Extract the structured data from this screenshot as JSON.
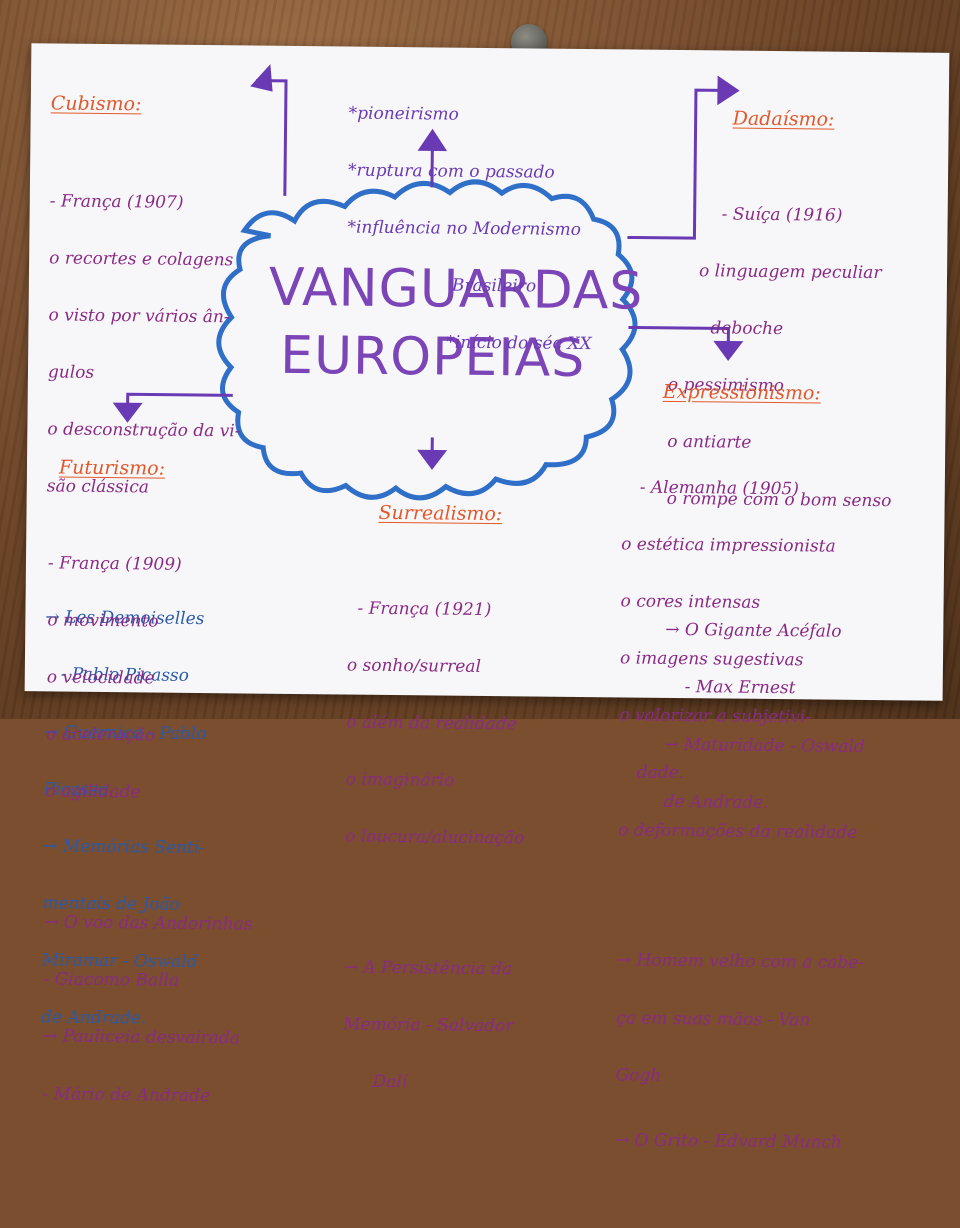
{
  "center": {
    "line1": "VANGUARDAS",
    "line2": "EUROPEIAS"
  },
  "top": {
    "items": [
      "*pioneirismo",
      "*ruptura com o passado",
      "*influência no Modernismo",
      "Brasileiro",
      "*início do séc XX"
    ]
  },
  "cubismo": {
    "title": "Cubismo:",
    "items": [
      "- França (1907)",
      "o recortes e colagens",
      "o visto por vários ân-",
      "gulos",
      "o desconstrução da vi-",
      "são clássica"
    ],
    "works": [
      "→ Les Demoiselles",
      "- Pablo Picasso",
      "→ Guernica - Pablo",
      "Picasso",
      "→ Memórias Senti-",
      "mentais de João",
      "Miramar - Oswald",
      "de Andrade."
    ]
  },
  "dadaismo": {
    "title": "Dadaísmo:",
    "items": [
      "- Suíça (1916)",
      "o linguagem peculiar",
      "deboche",
      "o pessimismo",
      "o antiarte",
      "o rompe com o bom senso"
    ],
    "works": [
      "→ O Gigante Acéfalo",
      "- Max Ernest",
      "→ Maturidade - Oswald",
      "de Andrade."
    ]
  },
  "expressionismo": {
    "title": "Expressionismo:",
    "items": [
      "- Alemanha (1905)",
      "o estética impressionista",
      "o cores intensas",
      "o imagens sugestivas",
      "o valorizar a subjetivi-",
      "dade.",
      "o deformações da realidade"
    ],
    "works": [
      "→ Homem velho com a cabe-",
      "ça em suas mãos - Van",
      "Gogh",
      "→ O Grito - Edvard Munch"
    ]
  },
  "surrealismo": {
    "title": "Surrealismo:",
    "items": [
      "- França (1921)",
      "o sonho/surreal",
      "o além da realidade",
      "o imaginário",
      "o loucura/alucinação"
    ],
    "works": [
      "→ A Persistência da",
      "Memória - Salvador",
      "Dalí"
    ]
  },
  "futurismo": {
    "title": "Futurismo:",
    "items": [
      "- França (1909)",
      "o movimento",
      "o velocidade",
      "o aceleração",
      "o agilidade"
    ],
    "works": [
      "→ O voo das Andorinhas",
      "- Giacomo Balla",
      "→ Pauliceia desvairada",
      "- Mário de Andrade"
    ]
  },
  "colors": {
    "title_orange": "#e2582b",
    "ink_purple": "#8a2a86",
    "ink_blue": "#2a5aa8",
    "cloud_blue": "#2f6fc8",
    "arrow_violet": "#6a3ab4"
  }
}
